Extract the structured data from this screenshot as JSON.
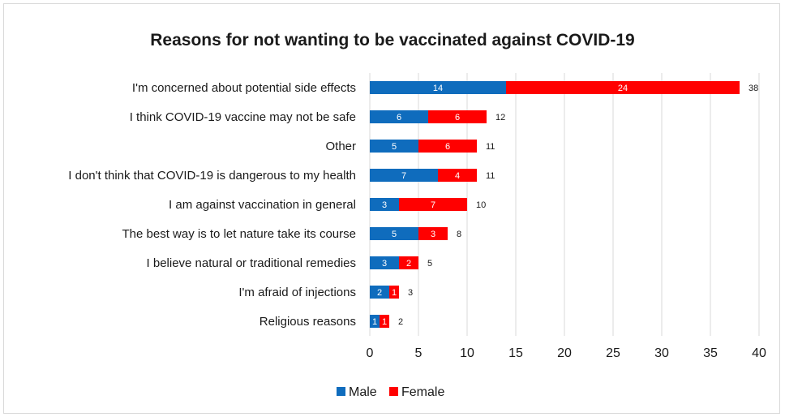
{
  "chart_data": {
    "type": "bar",
    "stacked": true,
    "orientation": "horizontal",
    "title": "Reasons for not wanting to be vaccinated against COVID-19",
    "categories": [
      "I'm concerned about potential side effects",
      "I think COVID-19 vaccine may not be safe",
      "Other",
      "I don't think that COVID-19 is dangerous to my health",
      "I am against vaccination in general",
      "The best way is to let nature take its course",
      "I believe natural or traditional remedies",
      "I'm afraid of injections",
      "Religious reasons"
    ],
    "series": [
      {
        "name": "Male",
        "color": "#0f6cbd",
        "values": [
          14,
          6,
          5,
          7,
          3,
          5,
          3,
          2,
          1
        ]
      },
      {
        "name": "Female",
        "color": "#ff0000",
        "values": [
          24,
          6,
          6,
          4,
          7,
          3,
          2,
          1,
          1
        ]
      }
    ],
    "totals": [
      38,
      12,
      11,
      11,
      10,
      8,
      5,
      3,
      2
    ],
    "xlim": [
      0,
      40
    ],
    "xticks": [
      0,
      5,
      10,
      15,
      20,
      25,
      30,
      35,
      40
    ],
    "grid": true,
    "legend_position": "bottom"
  }
}
